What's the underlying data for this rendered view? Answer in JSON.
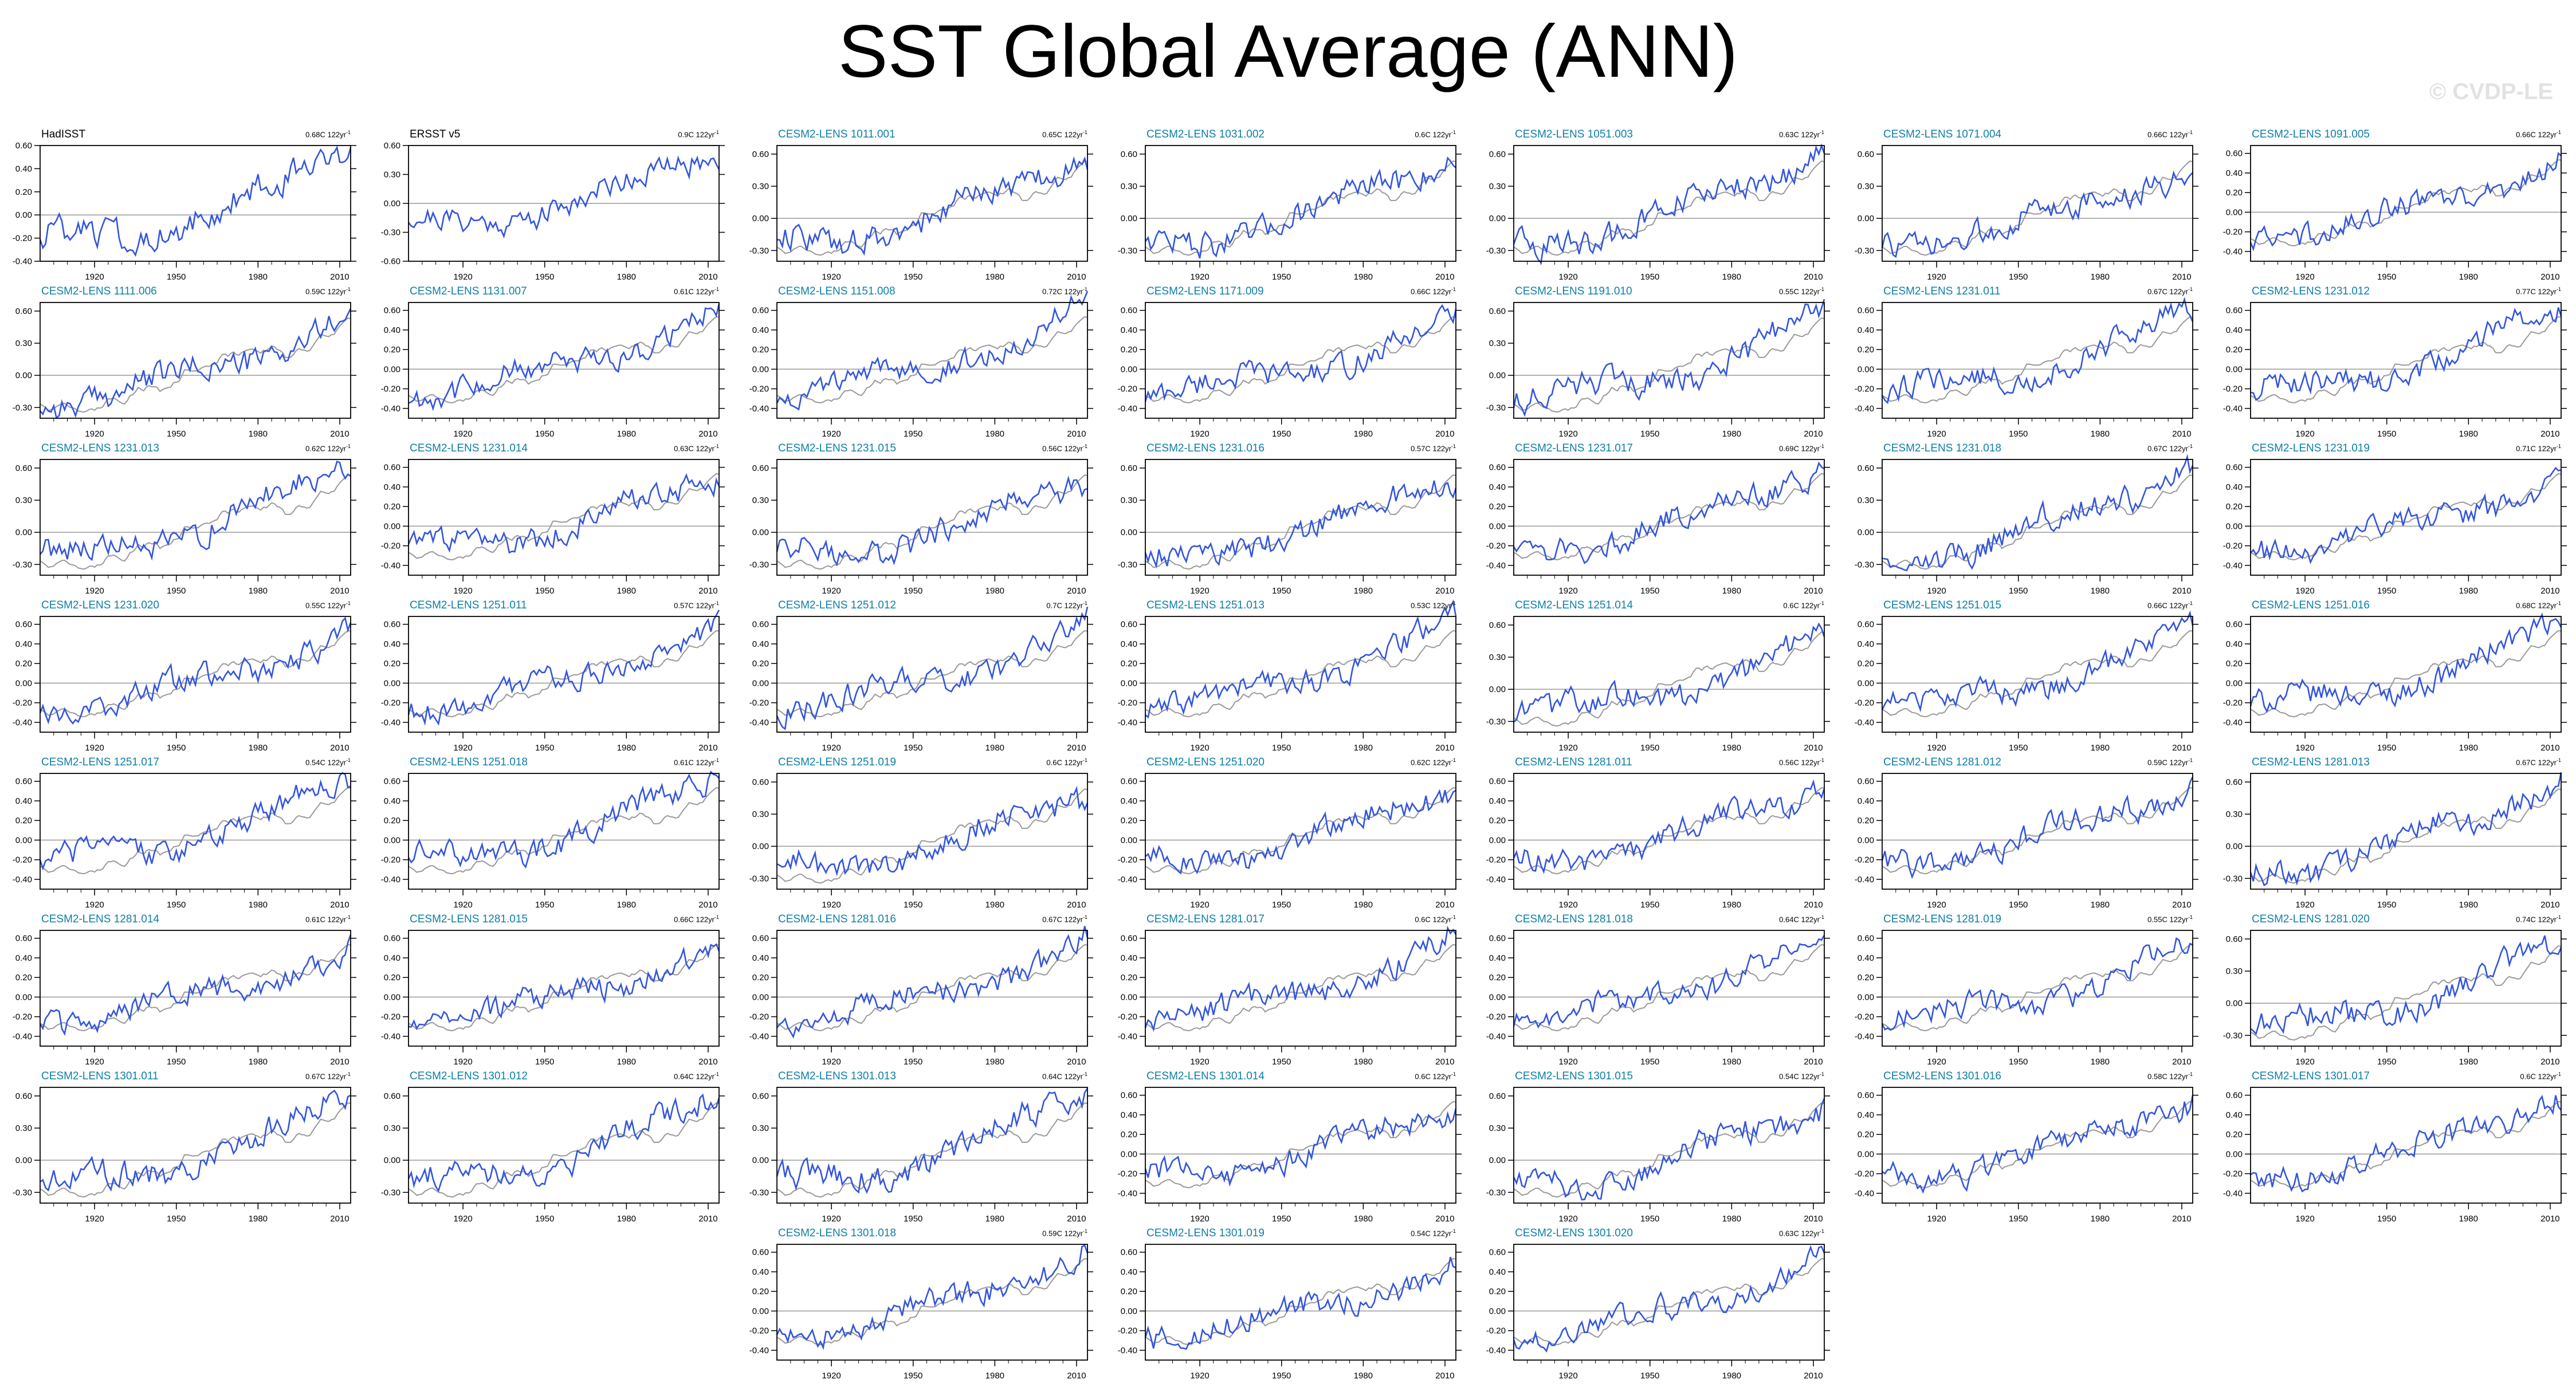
{
  "title": "SST Global Average (ANN)",
  "watermark": "© CVDP-LE",
  "colors": {
    "member": "#3355dd",
    "observation": "#999999",
    "obs_panel": "#3355dd",
    "title_member": "#0d7fa8",
    "title_obs": "#000000"
  },
  "chart_data": {
    "type": "line",
    "x_range": [
      1900,
      2014
    ],
    "x_ticks": [
      1920,
      1950,
      1980,
      2010
    ],
    "y_ticks_standard": [
      "0.60",
      "0.30",
      "0.00",
      "-0.30"
    ],
    "y_ticks_dense": [
      "0.60",
      "0.40",
      "0.20",
      "0.00",
      "-0.20",
      "-0.40"
    ],
    "panels": [
      {
        "title": "HadISST",
        "trend": "0.68C 122yr",
        "obs": true,
        "ylim": [
          -0.4,
          0.6
        ],
        "yticks": [
          "0.60",
          "0.40",
          "0.20",
          "0.00",
          "-0.20",
          "-0.40"
        ]
      },
      {
        "title": "ERSST v5",
        "trend": "0.9C 122yr",
        "obs": true,
        "ylim": [
          -0.6,
          0.6
        ],
        "yticks": [
          "0.60",
          "0.30",
          "0.00",
          "-0.30",
          "-0.60"
        ]
      },
      {
        "title": "CESM2-LENS 1011.001",
        "trend": "0.65C 122yr",
        "yticks": "standard"
      },
      {
        "title": "CESM2-LENS 1031.002",
        "trend": "0.6C 122yr",
        "yticks": "standard"
      },
      {
        "title": "CESM2-LENS 1051.003",
        "trend": "0.63C 122yr",
        "yticks": "standard"
      },
      {
        "title": "CESM2-LENS 1071.004",
        "trend": "0.66C 122yr",
        "yticks": "standard"
      },
      {
        "title": "CESM2-LENS 1091.005",
        "trend": "0.66C 122yr",
        "yticks": "dense"
      },
      {
        "title": "CESM2-LENS 1111.006",
        "trend": "0.59C 122yr",
        "yticks": "standard"
      },
      {
        "title": "CESM2-LENS 1131.007",
        "trend": "0.61C 122yr",
        "yticks": "dense"
      },
      {
        "title": "CESM2-LENS 1151.008",
        "trend": "0.72C 122yr",
        "yticks": "dense"
      },
      {
        "title": "CESM2-LENS 1171.009",
        "trend": "0.66C 122yr",
        "yticks": "dense"
      },
      {
        "title": "CESM2-LENS 1191.010",
        "trend": "0.55C 122yr",
        "yticks": "standard"
      },
      {
        "title": "CESM2-LENS 1231.011",
        "trend": "0.67C 122yr",
        "yticks": "dense"
      },
      {
        "title": "CESM2-LENS 1231.012",
        "trend": "0.77C 122yr",
        "yticks": "dense"
      },
      {
        "title": "CESM2-LENS 1231.013",
        "trend": "0.62C 122yr",
        "yticks": "standard"
      },
      {
        "title": "CESM2-LENS 1231.014",
        "trend": "0.63C 122yr",
        "yticks": "dense"
      },
      {
        "title": "CESM2-LENS 1231.015",
        "trend": "0.56C 122yr",
        "yticks": "standard"
      },
      {
        "title": "CESM2-LENS 1231.016",
        "trend": "0.57C 122yr",
        "yticks": "standard"
      },
      {
        "title": "CESM2-LENS 1231.017",
        "trend": "0.69C 122yr",
        "yticks": "dense"
      },
      {
        "title": "CESM2-LENS 1231.018",
        "trend": "0.67C 122yr",
        "yticks": "standard"
      },
      {
        "title": "CESM2-LENS 1231.019",
        "trend": "0.71C 122yr",
        "yticks": "dense"
      },
      {
        "title": "CESM2-LENS 1231.020",
        "trend": "0.55C 122yr",
        "yticks": "dense"
      },
      {
        "title": "CESM2-LENS 1251.011",
        "trend": "0.57C 122yr",
        "yticks": "dense"
      },
      {
        "title": "CESM2-LENS 1251.012",
        "trend": "0.7C 122yr",
        "yticks": "dense"
      },
      {
        "title": "CESM2-LENS 1251.013",
        "trend": "0.53C 122yr",
        "yticks": "dense"
      },
      {
        "title": "CESM2-LENS 1251.014",
        "trend": "0.6C 122yr",
        "yticks": "standard"
      },
      {
        "title": "CESM2-LENS 1251.015",
        "trend": "0.66C 122yr",
        "yticks": "dense"
      },
      {
        "title": "CESM2-LENS 1251.016",
        "trend": "0.68C 122yr",
        "yticks": "dense"
      },
      {
        "title": "CESM2-LENS 1251.017",
        "trend": "0.54C 122yr",
        "yticks": "dense"
      },
      {
        "title": "CESM2-LENS 1251.018",
        "trend": "0.61C 122yr",
        "yticks": "dense"
      },
      {
        "title": "CESM2-LENS 1251.019",
        "trend": "0.6C 122yr",
        "yticks": "standard"
      },
      {
        "title": "CESM2-LENS 1251.020",
        "trend": "0.62C 122yr",
        "yticks": "dense"
      },
      {
        "title": "CESM2-LENS 1281.011",
        "trend": "0.56C 122yr",
        "yticks": "dense"
      },
      {
        "title": "CESM2-LENS 1281.012",
        "trend": "0.59C 122yr",
        "yticks": "dense"
      },
      {
        "title": "CESM2-LENS 1281.013",
        "trend": "0.67C 122yr",
        "yticks": "standard"
      },
      {
        "title": "CESM2-LENS 1281.014",
        "trend": "0.61C 122yr",
        "yticks": "dense"
      },
      {
        "title": "CESM2-LENS 1281.015",
        "trend": "0.66C 122yr",
        "yticks": "dense"
      },
      {
        "title": "CESM2-LENS 1281.016",
        "trend": "0.67C 122yr",
        "yticks": "dense"
      },
      {
        "title": "CESM2-LENS 1281.017",
        "trend": "0.6C 122yr",
        "yticks": "dense"
      },
      {
        "title": "CESM2-LENS 1281.018",
        "trend": "0.64C 122yr",
        "yticks": "dense"
      },
      {
        "title": "CESM2-LENS 1281.019",
        "trend": "0.55C 122yr",
        "yticks": "dense"
      },
      {
        "title": "CESM2-LENS 1281.020",
        "trend": "0.74C 122yr",
        "yticks": "standard"
      },
      {
        "title": "CESM2-LENS 1301.011",
        "trend": "0.67C 122yr",
        "yticks": "standard"
      },
      {
        "title": "CESM2-LENS 1301.012",
        "trend": "0.64C 122yr",
        "yticks": "standard"
      },
      {
        "title": "CESM2-LENS 1301.013",
        "trend": "0.64C 122yr",
        "yticks": "standard"
      },
      {
        "title": "CESM2-LENS 1301.014",
        "trend": "0.6C 122yr",
        "yticks": "dense"
      },
      {
        "title": "CESM2-LENS 1301.015",
        "trend": "0.54C 122yr",
        "yticks": "standard"
      },
      {
        "title": "CESM2-LENS 1301.016",
        "trend": "0.58C 122yr",
        "yticks": "dense"
      },
      {
        "title": "CESM2-LENS 1301.017",
        "trend": "0.6C 122yr",
        "yticks": "dense"
      },
      {
        "title": "CESM2-LENS 1301.018",
        "trend": "0.59C 122yr",
        "yticks": "dense"
      },
      {
        "title": "CESM2-LENS 1301.019",
        "trend": "0.54C 122yr",
        "yticks": "dense"
      },
      {
        "title": "CESM2-LENS 1301.020",
        "trend": "0.63C 122yr",
        "yticks": "dense"
      }
    ]
  }
}
